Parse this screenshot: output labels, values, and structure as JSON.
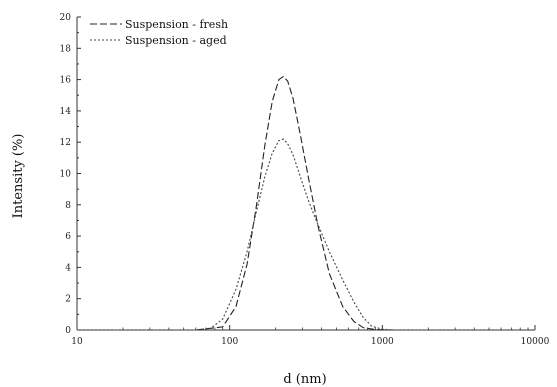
{
  "chart_data": {
    "type": "line",
    "xlabel": "d (nm)",
    "ylabel": "Intensity (%)",
    "x_scale": "log",
    "xlim": [
      10,
      10000
    ],
    "ylim": [
      0,
      20
    ],
    "x_ticks": [
      10,
      100,
      1000,
      10000
    ],
    "x_tick_labels": [
      "10",
      "100",
      "1000",
      "10000"
    ],
    "y_ticks": [
      0,
      2,
      4,
      6,
      8,
      10,
      12,
      14,
      16,
      18,
      20
    ],
    "y_tick_labels": [
      "0",
      "2",
      "4",
      "6",
      "8",
      "10",
      "12",
      "14",
      "16",
      "18",
      "20"
    ],
    "legend_position": "top-left",
    "series": [
      {
        "name": "Suspension - fresh",
        "line_style": "dashed",
        "color": "#222222",
        "x": [
          10,
          60,
          90,
          110,
          130,
          150,
          170,
          190,
          210,
          225,
          240,
          260,
          290,
          330,
          380,
          450,
          550,
          650,
          750,
          900,
          1100,
          10000
        ],
        "y": [
          0,
          0,
          0.2,
          1.5,
          4.2,
          8.0,
          11.8,
          14.6,
          16.0,
          16.2,
          15.9,
          14.8,
          12.5,
          9.6,
          6.6,
          3.6,
          1.5,
          0.55,
          0.15,
          0.03,
          0,
          0
        ]
      },
      {
        "name": "Suspension - aged",
        "line_style": "dotted",
        "color": "#444444",
        "x": [
          10,
          60,
          75,
          90,
          110,
          130,
          150,
          170,
          190,
          210,
          225,
          240,
          260,
          290,
          330,
          380,
          450,
          550,
          650,
          750,
          850,
          1000,
          1200,
          10000
        ],
        "y": [
          0,
          0,
          0.1,
          0.7,
          2.6,
          5.0,
          7.6,
          9.8,
          11.3,
          12.1,
          12.2,
          11.9,
          11.2,
          9.8,
          8.2,
          6.7,
          5.0,
          3.2,
          1.8,
          0.8,
          0.25,
          0.05,
          0,
          0
        ]
      }
    ]
  }
}
